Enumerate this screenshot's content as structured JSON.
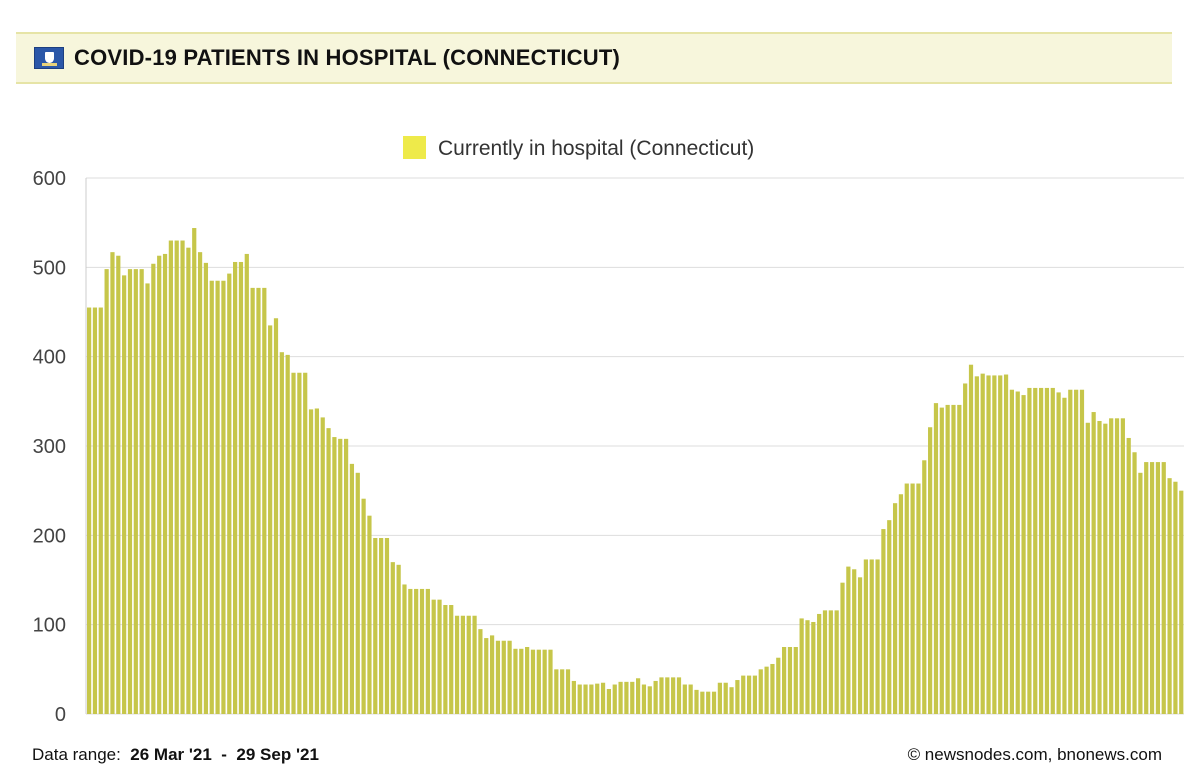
{
  "header": {
    "title": "COVID-19 PATIENTS IN HOSPITAL (CONNECTICUT)",
    "flag_icon": "connecticut-flag-icon"
  },
  "colors": {
    "bar": "#c6c64a",
    "legend_swatch": "#eeea4a",
    "grid": "#dddddd",
    "header_bg": "#f7f6dc"
  },
  "chart_data": {
    "type": "bar",
    "series": [
      {
        "name": "Currently in hospital (Connecticut)",
        "values": [
          455,
          455,
          455,
          498,
          517,
          513,
          491,
          498,
          498,
          498,
          482,
          504,
          513,
          515,
          530,
          530,
          530,
          522,
          544,
          517,
          505,
          485,
          485,
          485,
          493,
          506,
          506,
          515,
          477,
          477,
          477,
          435,
          443,
          405,
          402,
          382,
          382,
          382,
          341,
          342,
          332,
          320,
          310,
          308,
          308,
          280,
          270,
          241,
          222,
          197,
          197,
          197,
          170,
          167,
          145,
          140,
          140,
          140,
          140,
          128,
          128,
          122,
          122,
          110,
          110,
          110,
          110,
          95,
          85,
          88,
          82,
          82,
          82,
          73,
          73,
          75,
          72,
          72,
          72,
          72,
          50,
          50,
          50,
          37,
          33,
          33,
          33,
          34,
          35,
          28,
          33,
          36,
          36,
          36,
          40,
          33,
          31,
          37,
          41,
          41,
          41,
          41,
          33,
          33,
          27,
          25,
          25,
          25,
          35,
          35,
          30,
          38,
          43,
          43,
          43,
          50,
          53,
          56,
          63,
          75,
          75,
          75,
          107,
          105,
          103,
          112,
          116,
          116,
          116,
          147,
          165,
          162,
          153,
          173,
          173,
          173,
          207,
          217,
          236,
          246,
          258,
          258,
          258,
          284,
          321,
          348,
          343,
          346,
          346,
          346,
          370,
          391,
          378,
          381,
          379,
          379,
          379,
          380,
          363,
          361,
          357,
          365,
          365,
          365,
          365,
          365,
          360,
          354,
          363,
          363,
          363,
          326,
          338,
          328,
          325,
          331,
          331,
          331,
          309,
          293,
          270,
          282,
          282,
          282,
          282,
          264,
          260,
          250
        ]
      }
    ],
    "ylim": [
      0,
      600
    ],
    "yticks": [
      "0",
      "100",
      "200",
      "300",
      "400",
      "500",
      "600"
    ],
    "grid": true,
    "legend_position": "top-center",
    "xlabel": "",
    "ylabel": ""
  },
  "footer": {
    "range_label": "Data range:",
    "range_start": "26 Mar '21",
    "range_sep": "-",
    "range_end": "29 Sep '21",
    "credit": "© newsnodes.com, bnonews.com"
  }
}
